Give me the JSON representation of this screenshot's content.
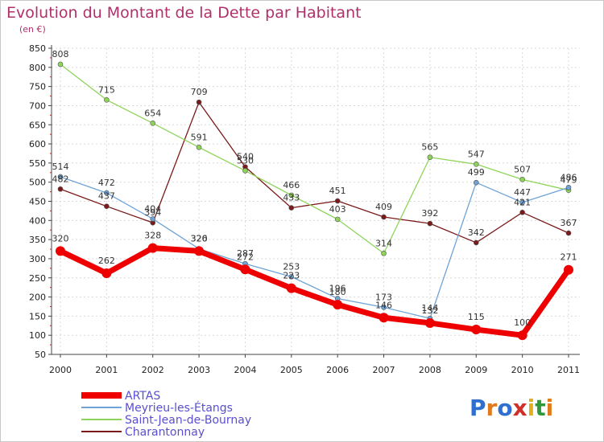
{
  "title": "Evolution du Montant de la Dette par Habitant",
  "subtitle": "(en €)",
  "brand": {
    "letters": [
      "P",
      "r",
      "o",
      "x",
      "i",
      "t",
      "i"
    ],
    "colors": [
      "#2f6fd0",
      "#e07a1a",
      "#2f6fd0",
      "#d0302a",
      "#e0b020",
      "#2f9a3a",
      "#e07a1a"
    ]
  },
  "chart_data": {
    "type": "line",
    "x": [
      "2000",
      "2001",
      "2002",
      "2003",
      "2004",
      "2005",
      "2006",
      "2007",
      "2008",
      "2009",
      "2010",
      "2011"
    ],
    "ylim": [
      50,
      850
    ],
    "yticks": [
      50,
      100,
      150,
      200,
      250,
      300,
      350,
      400,
      450,
      500,
      550,
      600,
      650,
      700,
      750,
      800,
      850
    ],
    "grid": true,
    "legend": "bottom-left",
    "series": [
      {
        "name": "Charantonnay",
        "color": "#7a1a1a",
        "width": 1.3,
        "marker": 3,
        "label_dy": -9,
        "values": [
          482,
          437,
          394,
          709,
          540,
          433,
          451,
          409,
          392,
          342,
          421,
          367
        ]
      },
      {
        "name": "Saint-Jean-de-Bournay",
        "color": "#8fd45a",
        "width": 1.3,
        "marker": 3,
        "label_dy": -9,
        "values": [
          808,
          715,
          654,
          591,
          530,
          466,
          403,
          314,
          565,
          547,
          507,
          479
        ]
      },
      {
        "name": "Meyrieu-les-Étangs",
        "color": "#6fa3d6",
        "width": 1.3,
        "marker": 3,
        "label_dy": -9,
        "values": [
          514,
          472,
          404,
          326,
          287,
          253,
          196,
          173,
          144,
          499,
          447,
          486
        ]
      },
      {
        "name": "ARTAS",
        "color": "#ee0000",
        "width": 7,
        "marker": 6,
        "label_dy": -12,
        "values": [
          320,
          262,
          328,
          320,
          272,
          223,
          180,
          146,
          132,
          115,
          100,
          271
        ]
      }
    ],
    "legend_order": [
      "ARTAS",
      "Meyrieu-les-Étangs",
      "Saint-Jean-de-Bournay",
      "Charantonnay"
    ]
  }
}
